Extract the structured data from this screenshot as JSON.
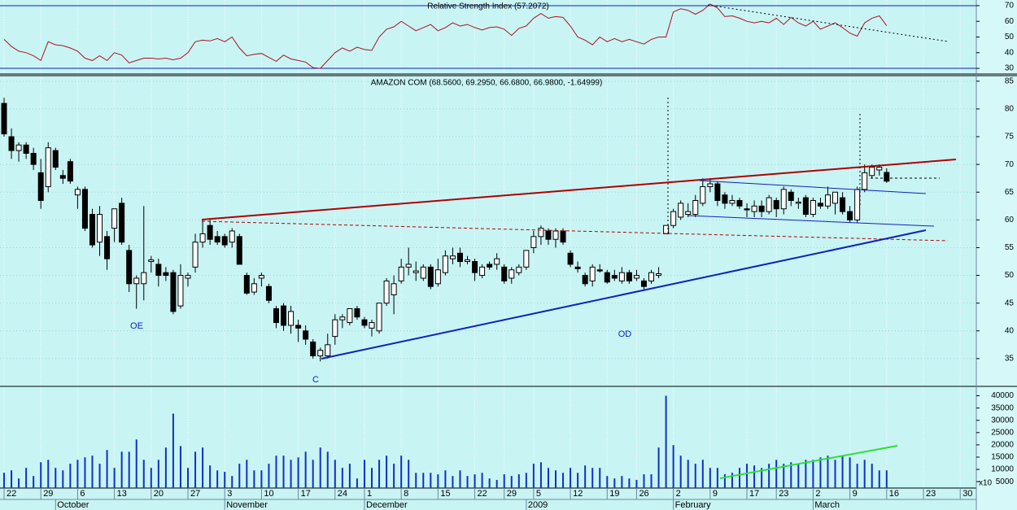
{
  "chart_data": [
    {
      "type": "line",
      "title": "Relative Strength Index (57.2072)",
      "color": "#b01020",
      "ylim": [
        26.4,
        73.6
      ],
      "yticks": [
        30,
        40,
        50,
        60,
        70
      ],
      "values": [
        48.5,
        44,
        41,
        40,
        38,
        35,
        47,
        45,
        44.5,
        43,
        41,
        36.5,
        35,
        38,
        35,
        40,
        38.5,
        33.5,
        35,
        36.5,
        36.5,
        36,
        36.5,
        35.5,
        36.5,
        40,
        47,
        48,
        47.5,
        49,
        47,
        50,
        43,
        38,
        39,
        39.5,
        37,
        34.5,
        38.5,
        36,
        35,
        34,
        30.5,
        30,
        35,
        40,
        43,
        41,
        43.5,
        42,
        41.5,
        50,
        55,
        56.5,
        60,
        57,
        54,
        56,
        58,
        54,
        56,
        59,
        57,
        58,
        56,
        54.5,
        56,
        56.5,
        55,
        51,
        55.5,
        57,
        62,
        65,
        62,
        63,
        62.5,
        57,
        50,
        48,
        45,
        50,
        47,
        49,
        47,
        48.5,
        47,
        45.5,
        48.5,
        50,
        50,
        66,
        68,
        67,
        64.5,
        67,
        71,
        68.5,
        63,
        63.5,
        62,
        60,
        59,
        60,
        59,
        62,
        58,
        62.5,
        59,
        57,
        60,
        55,
        57,
        59,
        56,
        52.5,
        50.5,
        59,
        62,
        63.5,
        57.2,
        null,
        null,
        null,
        null,
        null,
        null,
        null,
        null,
        null,
        null
      ]
    },
    {
      "type": "candlestick",
      "title": "AMAZON COM (68.5600, 69.2950, 66.6800, 66.9800, -1.64999)",
      "ylim": [
        30,
        86
      ],
      "yticks": [
        35,
        40,
        45,
        50,
        55,
        60,
        65,
        70,
        75,
        80,
        85
      ],
      "annotations": [
        "OE",
        "C",
        "OD"
      ],
      "open": [
        81,
        75,
        72.5,
        73.5,
        72,
        68.5,
        66,
        72.5,
        68,
        70.5,
        64.5,
        65.5,
        61,
        56,
        57,
        58.5,
        63,
        54.5,
        48.5,
        48.5,
        52.5,
        52,
        50.5,
        50.5,
        44.5,
        49.5,
        51.5,
        56,
        59,
        57,
        57,
        56,
        57,
        50,
        47,
        49.5,
        48,
        44,
        44.5,
        41,
        41,
        40,
        38,
        35.5,
        35.5,
        39,
        42,
        41.5,
        44,
        42,
        40.5,
        40,
        45,
        46.5,
        49,
        51.5,
        50.5,
        49.5,
        51.5,
        48.5,
        50.5,
        53,
        54,
        52.5,
        52.5,
        50,
        52,
        52,
        51.5,
        49.5,
        50.5,
        51.5,
        55,
        57,
        58,
        56.5,
        58,
        54,
        51.5,
        50,
        49,
        51,
        50.5,
        50,
        49,
        50.5,
        49.5,
        49,
        49,
        50,
        57.5,
        59,
        60.5,
        61,
        61,
        63,
        66,
        66.5,
        64.5,
        63,
        63.5,
        62,
        61.5,
        62.5,
        61.5,
        63.5,
        62,
        65,
        63,
        64,
        61,
        63,
        62.5,
        63,
        64,
        61.5,
        60,
        65.5,
        68,
        69,
        68.56,
        null,
        null,
        null,
        null,
        null,
        null,
        null,
        null,
        null,
        null
      ],
      "high": [
        82,
        76.5,
        74,
        74,
        73,
        71,
        74,
        73,
        69,
        71,
        66,
        66,
        62,
        62.5,
        58,
        62,
        64,
        55.5,
        50,
        62.5,
        53.5,
        53,
        51.5,
        51,
        52,
        50.5,
        57.5,
        60,
        60,
        58,
        57.5,
        58.5,
        57.5,
        50.5,
        49.5,
        50.5,
        48.5,
        44.5,
        45,
        44.5,
        42,
        41,
        38.5,
        37,
        39.5,
        43,
        43,
        44,
        44.5,
        42.5,
        42,
        45,
        49.5,
        50,
        53,
        55,
        52.5,
        52,
        52,
        53,
        54.5,
        55,
        55,
        53.5,
        53,
        52,
        52.5,
        54,
        52,
        51.5,
        52,
        54.5,
        58,
        59,
        58.5,
        58.5,
        58.5,
        54.5,
        52.5,
        50.5,
        52,
        52,
        51,
        51,
        51.5,
        51,
        51,
        49.5,
        51,
        51.5,
        59,
        62,
        63.5,
        63,
        64.5,
        67.5,
        67.5,
        67,
        65,
        64.5,
        64,
        63,
        63.5,
        63.5,
        64.5,
        64,
        66,
        65.5,
        64,
        64.5,
        64,
        64,
        66,
        65,
        65,
        62.5,
        66,
        70,
        70,
        70,
        69.295,
        null,
        null,
        null,
        null,
        null,
        null,
        null,
        null,
        null,
        null
      ],
      "low": [
        75,
        71,
        70.5,
        71,
        69,
        62,
        65,
        69,
        66.5,
        66.5,
        62,
        58,
        55,
        53.5,
        51,
        56,
        55.5,
        47,
        44,
        45.5,
        50.5,
        48,
        49,
        43,
        44,
        48,
        50.5,
        55,
        55.5,
        55.5,
        55,
        55,
        52,
        46.5,
        46.5,
        48,
        45,
        40.5,
        40,
        39.5,
        38,
        37.5,
        35,
        34.5,
        35,
        37.5,
        40.5,
        41,
        42,
        40.5,
        39,
        39.5,
        44.5,
        43,
        48.5,
        50,
        49,
        49,
        47.5,
        48,
        50,
        52,
        51.5,
        52,
        49,
        49.5,
        51,
        51,
        48.5,
        48.5,
        50,
        51,
        54,
        55.5,
        55.5,
        55,
        55.5,
        51.5,
        50.5,
        48,
        48,
        50.5,
        48.5,
        49,
        48.5,
        48.5,
        49,
        47.5,
        48.5,
        49.5,
        57.5,
        58.5,
        60,
        60.5,
        60.5,
        62.5,
        65,
        62.5,
        62,
        62.5,
        62,
        60.5,
        60.5,
        60.5,
        61,
        60.5,
        61,
        62.5,
        62,
        60.5,
        60.5,
        62,
        62,
        61,
        61,
        59.5,
        59.5,
        65,
        67.5,
        68,
        66.68,
        null,
        null,
        null,
        null,
        null,
        null,
        null,
        null,
        null,
        null
      ],
      "close": [
        75.5,
        72.5,
        73.5,
        72,
        70,
        63.5,
        73,
        69.5,
        67.5,
        67,
        65.5,
        58.5,
        55.5,
        61,
        53,
        62,
        56,
        48.5,
        49.5,
        50.5,
        52.8,
        50,
        50,
        43.5,
        50,
        50,
        56,
        57.5,
        56.5,
        56,
        55.5,
        58,
        52,
        46.8,
        48.5,
        50,
        45.5,
        41.5,
        41,
        43.5,
        40.5,
        38.5,
        35.5,
        36.5,
        37.5,
        42,
        42.5,
        44,
        42.5,
        41,
        41.5,
        45,
        49,
        48.5,
        51.5,
        52,
        50.8,
        51.5,
        48,
        51,
        53.5,
        53.5,
        52.5,
        52.8,
        50.5,
        51.5,
        51.5,
        53,
        49,
        51,
        51.5,
        54.5,
        57,
        58.5,
        56.5,
        58,
        56,
        52,
        51.2,
        48.5,
        51.5,
        50.8,
        48.8,
        49.5,
        50.5,
        49,
        50,
        48,
        50.5,
        50.3,
        59,
        61.5,
        63,
        61.5,
        63.5,
        66,
        66.5,
        63.5,
        63,
        63.5,
        62.5,
        61.8,
        62.5,
        61.5,
        64,
        62,
        65.5,
        63.5,
        63.2,
        61,
        63.5,
        62.5,
        64.5,
        65,
        61.5,
        60,
        65.5,
        68.5,
        69.5,
        69.5,
        66.98,
        null,
        null,
        null,
        null,
        null,
        null,
        null,
        null,
        null,
        null
      ]
    },
    {
      "type": "bar",
      "color": "#1030c8",
      "y_scale_label": "x10",
      "ylim": [
        2400,
        43500
      ],
      "yticks": [
        5000,
        10000,
        15000,
        20000,
        25000,
        30000,
        35000,
        40000
      ],
      "values": [
        8600,
        9600,
        6300,
        10600,
        7300,
        12900,
        13900,
        10600,
        9600,
        12300,
        13900,
        14900,
        15600,
        12300,
        17900,
        10600,
        17200,
        17200,
        22200,
        13900,
        10600,
        13900,
        18900,
        32700,
        19500,
        10600,
        17200,
        18900,
        11600,
        9600,
        9000,
        7300,
        12300,
        13900,
        9600,
        9600,
        12300,
        15600,
        15600,
        13900,
        14900,
        17200,
        13900,
        18900,
        17200,
        13900,
        10600,
        12300,
        6300,
        13900,
        10600,
        13900,
        15600,
        12300,
        15600,
        13900,
        8600,
        8600,
        8600,
        8000,
        9600,
        7300,
        9600,
        7300,
        8000,
        8600,
        6300,
        5700,
        8000,
        7300,
        8000,
        8600,
        12300,
        12900,
        10600,
        9600,
        8600,
        10600,
        8600,
        11600,
        10600,
        10600,
        7300,
        6300,
        7300,
        6300,
        5700,
        8000,
        8000,
        18900,
        40000,
        19900,
        15600,
        13900,
        12300,
        13900,
        10600,
        10600,
        8000,
        8600,
        10600,
        12300,
        11600,
        10600,
        12300,
        13900,
        12300,
        12900,
        12300,
        13900,
        13900,
        14900,
        15600,
        13900,
        15600,
        14900,
        12300,
        13900,
        12300,
        9600,
        9600,
        null,
        null,
        null,
        null,
        null,
        null,
        null,
        null,
        null,
        null
      ],
      "categories": [
        "22",
        null,
        null,
        null,
        null,
        "29",
        null,
        null,
        null,
        null,
        "6",
        null,
        null,
        null,
        null,
        "13",
        null,
        null,
        null,
        null,
        "20",
        null,
        null,
        null,
        null,
        "27",
        null,
        null,
        null,
        null,
        "3",
        null,
        null,
        null,
        null,
        "10",
        null,
        null,
        null,
        null,
        "17",
        null,
        null,
        null,
        null,
        "24",
        null,
        null,
        null,
        "1",
        null,
        null,
        null,
        null,
        "8",
        null,
        null,
        null,
        null,
        "15",
        null,
        null,
        null,
        null,
        "22",
        null,
        null,
        null,
        "29",
        null,
        null,
        null,
        "5",
        null,
        null,
        null,
        null,
        "12",
        null,
        null,
        null,
        null,
        "19",
        null,
        null,
        null,
        "26",
        null,
        null,
        null,
        null,
        "2",
        null,
        null,
        null,
        null,
        "9",
        null,
        null,
        null,
        null,
        "17",
        null,
        null,
        null,
        "23",
        null,
        null,
        null,
        null,
        "2",
        null,
        null,
        null,
        null,
        "9",
        null,
        null,
        null,
        null,
        "16",
        null,
        null,
        null,
        null,
        "23",
        null,
        null,
        null,
        null,
        "30"
      ],
      "months": [
        null,
        null,
        null,
        null,
        null,
        null,
        null,
        "October",
        null,
        null,
        null,
        null,
        null,
        null,
        null,
        null,
        null,
        null,
        null,
        null,
        null,
        null,
        null,
        null,
        null,
        null,
        null,
        null,
        null,
        null,
        "November",
        null,
        null,
        null,
        null,
        null,
        null,
        null,
        null,
        null,
        null,
        null,
        null,
        null,
        null,
        null,
        null,
        null,
        null,
        "December",
        null,
        null,
        null,
        null,
        null,
        null,
        null,
        null,
        null,
        null,
        null,
        null,
        null,
        null,
        null,
        null,
        null,
        null,
        null,
        null,
        null,
        "2009",
        null,
        null,
        null,
        null,
        null,
        null,
        null,
        null,
        null,
        null,
        null,
        null,
        null,
        null,
        null,
        null,
        null,
        null,
        null,
        "February",
        null,
        null,
        null,
        null,
        null,
        null,
        null,
        null,
        null,
        null,
        null,
        null,
        null,
        null,
        null,
        null,
        null,
        null,
        "March",
        null,
        null,
        null,
        null,
        null,
        null,
        null,
        null,
        null,
        null,
        null,
        null,
        null,
        null,
        null,
        null,
        null,
        null,
        null,
        null
      ]
    }
  ]
}
